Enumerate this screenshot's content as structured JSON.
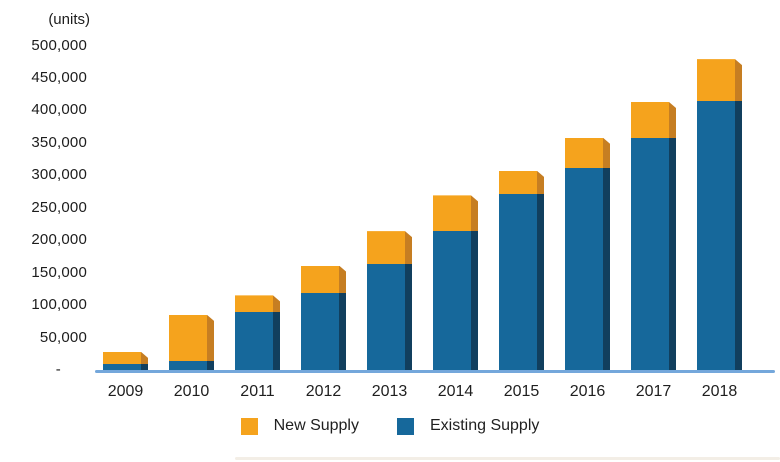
{
  "chart_data": {
    "type": "bar",
    "stacked": true,
    "title": "",
    "unit_label": "(units)",
    "xlabel": "",
    "ylabel": "(units)",
    "categories": [
      "2009",
      "2010",
      "2011",
      "2012",
      "2013",
      "2014",
      "2015",
      "2016",
      "2017",
      "2018"
    ],
    "series": [
      {
        "name": "Existing Supply",
        "color": "#16689B",
        "side_color": "#113F5E",
        "values": [
          9000,
          14000,
          90000,
          118000,
          164000,
          214000,
          271000,
          311000,
          358000,
          414000
        ]
      },
      {
        "name": "New Supply",
        "color": "#F5A31D",
        "side_color": "#C67E22",
        "values": [
          19000,
          71000,
          25000,
          43000,
          50000,
          55000,
          36000,
          47000,
          55000,
          65000
        ]
      }
    ],
    "totals": [
      28000,
      85000,
      115000,
      161000,
      214000,
      269000,
      307000,
      358000,
      413000,
      479000
    ],
    "ylim": [
      0,
      500000
    ],
    "ytick_step": 50000,
    "ytick_labels": [
      "-",
      "50,000",
      "100,000",
      "150,000",
      "200,000",
      "250,000",
      "300,000",
      "350,000",
      "400,000",
      "450,000",
      "500,000"
    ],
    "grid": false,
    "legend_position": "bottom",
    "legend": [
      {
        "label": "New Supply",
        "series": "New Supply"
      },
      {
        "label": "Existing Supply",
        "series": "Existing Supply"
      }
    ],
    "axis_line_color": "#74A7DB",
    "text_color": "#1c1c1c",
    "background_color": "#ffffff"
  }
}
